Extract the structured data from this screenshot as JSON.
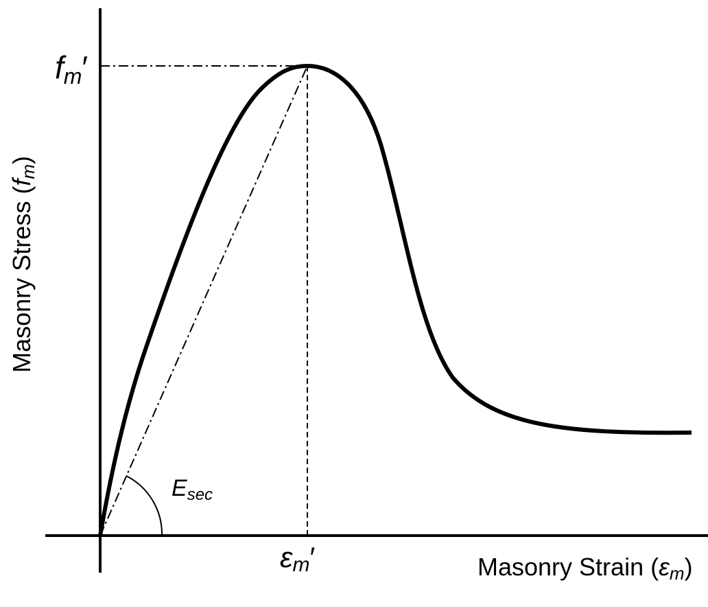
{
  "labels": {
    "peak_stress": {
      "base": "f",
      "sub": "m",
      "suffix": "′"
    },
    "y_axis": {
      "text": "Masonry Stress (",
      "base": "f",
      "sub": "m",
      "close": ")"
    },
    "secant": {
      "base": "E",
      "sub": "sec"
    },
    "peak_strain": {
      "base": "ε",
      "sub": "m",
      "suffix": "′"
    },
    "x_axis": {
      "text": "Masonry Strain (",
      "base": "ε",
      "sub": "m",
      "close": ")"
    }
  }
}
